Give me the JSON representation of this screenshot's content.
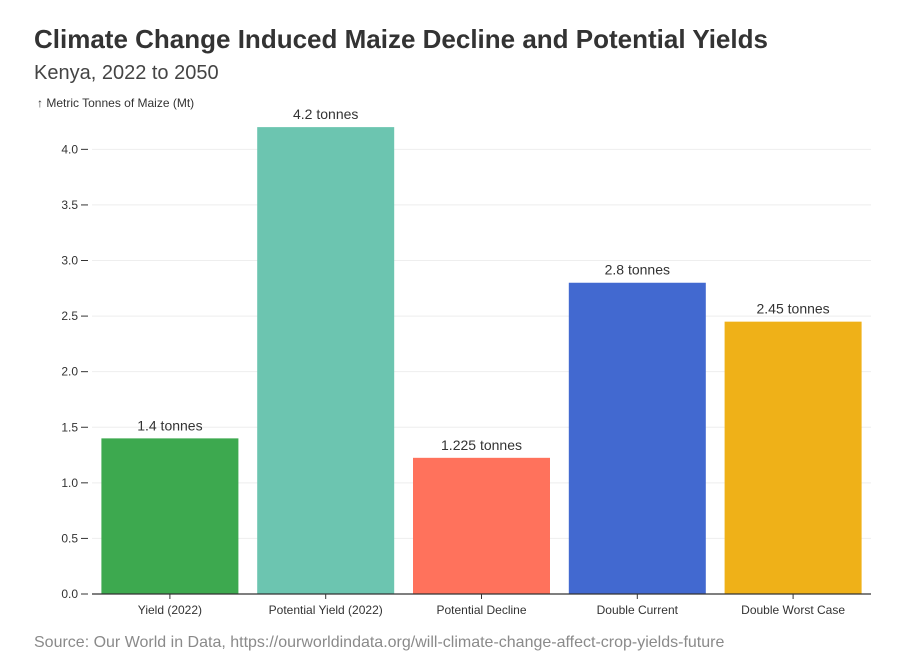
{
  "chart_data": {
    "type": "bar",
    "title": "Climate Change Induced Maize Decline and Potential Yields",
    "subtitle": "Kenya, 2022 to 2050",
    "ylabel": "↑ Metric Tonnes of Maize (Mt)",
    "xlabel": "",
    "ylim": [
      0,
      4.3
    ],
    "yticks": [
      0,
      0.5,
      1.0,
      1.5,
      2.0,
      2.5,
      3.0,
      3.5,
      4.0
    ],
    "ytick_labels": [
      "0.0",
      "0.5",
      "1.0",
      "1.5",
      "2.0",
      "2.5",
      "3.0",
      "3.5",
      "4.0"
    ],
    "grid": true,
    "categories": [
      "Yield (2022)",
      "Potential Yield (2022)",
      "Potential Decline",
      "Double Current",
      "Double Worst Case"
    ],
    "values": [
      1.4,
      4.2,
      1.225,
      2.8,
      2.45
    ],
    "data_labels": [
      "1.4 tonnes",
      "4.2 tonnes",
      "1.225 tonnes",
      "2.8 tonnes",
      "2.45 tonnes"
    ],
    "colors": [
      "#3da94f",
      "#6cc5b0",
      "#ff725c",
      "#4269d0",
      "#efb118"
    ],
    "source": "Source: Our World in Data, https://ourworldindata.org/will-climate-change-affect-crop-yields-future"
  },
  "style": {
    "grid_color": "#eeeeee",
    "axis_color": "#333333"
  }
}
